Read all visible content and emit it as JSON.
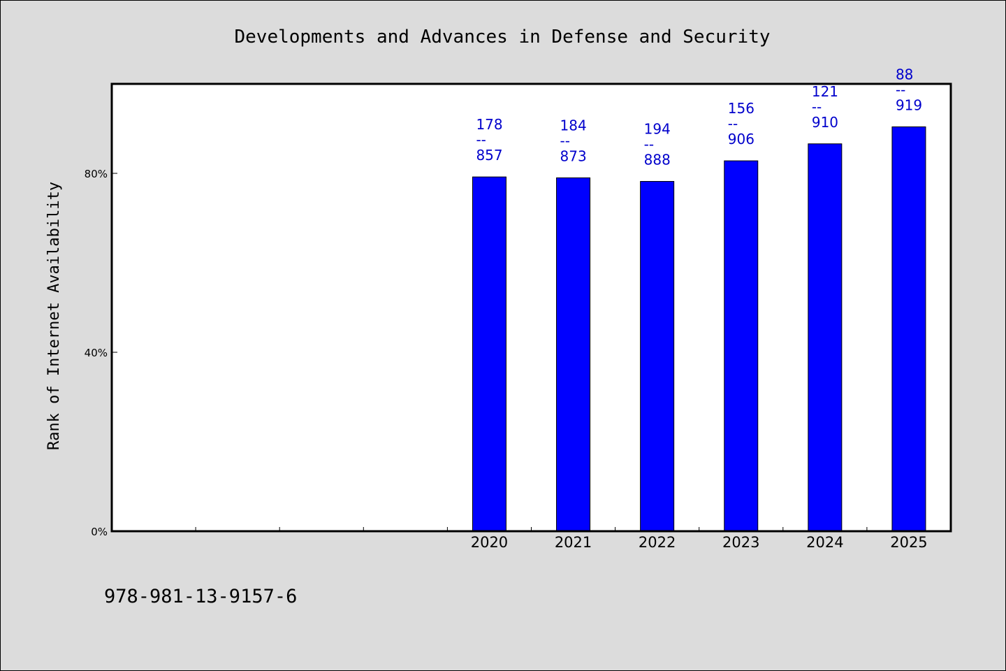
{
  "chart_data": {
    "type": "bar",
    "title": "Developments and Advances in Defense and Security",
    "xlabel": "",
    "ylabel": "Rank of Internet Availability",
    "categories": [
      "",
      "",
      "",
      "",
      "2020",
      "2021",
      "2022",
      "2023",
      "2024",
      "2025"
    ],
    "values": [
      null,
      null,
      null,
      null,
      79.2,
      79.0,
      78.2,
      82.8,
      86.6,
      90.4
    ],
    "ylim": [
      0,
      100
    ],
    "yticks": [
      {
        "value": 0,
        "label": "0%"
      },
      {
        "value": 40,
        "label": "40%"
      },
      {
        "value": 80,
        "label": "80%"
      }
    ],
    "data_labels": [
      {
        "top": "178",
        "sep": "--",
        "bottom": "857"
      },
      {
        "top": "184",
        "sep": "--",
        "bottom": "873"
      },
      {
        "top": "194",
        "sep": "--",
        "bottom": "888"
      },
      {
        "top": "156",
        "sep": "--",
        "bottom": "906"
      },
      {
        "top": "121",
        "sep": "--",
        "bottom": "910"
      },
      {
        "top": "88",
        "sep": "--",
        "bottom": "919"
      }
    ],
    "bar_color": "#0000ff",
    "label_color": "#0000cc",
    "background_color": "#dcdcdc",
    "plot_background": "#ffffff",
    "grid": false,
    "legend": "none"
  },
  "footer": {
    "isbn": "978-981-13-9157-6"
  }
}
